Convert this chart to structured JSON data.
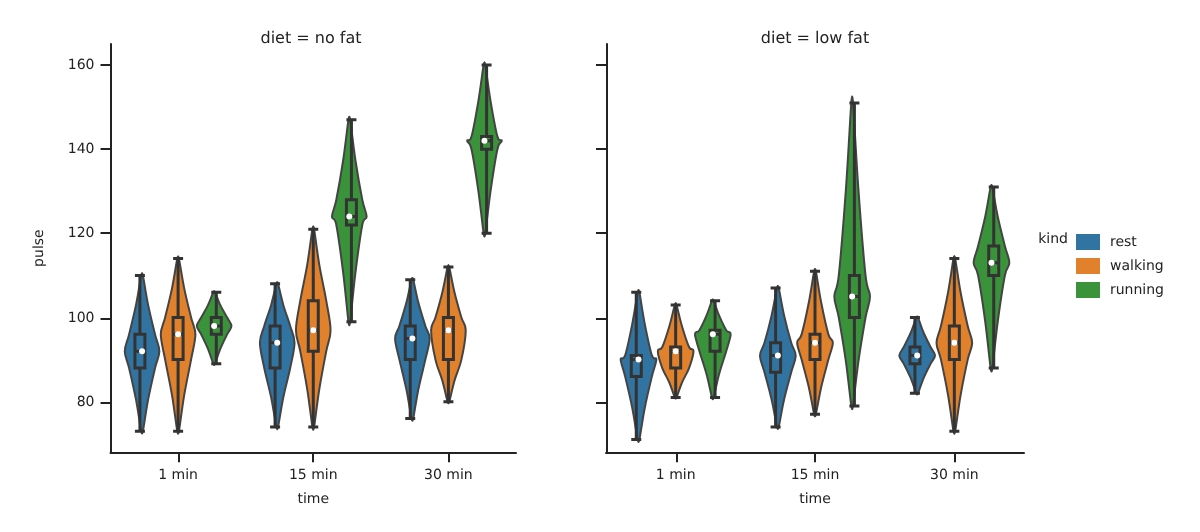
{
  "chart_data": [
    {
      "type": "box",
      "title": "diet = no fat",
      "xlabel": "time",
      "ylabel": "pulse",
      "categories": [
        "1 min",
        "15 min",
        "30 min"
      ],
      "ylim": [
        68,
        165
      ],
      "yticks": [
        80,
        100,
        120,
        140,
        160
      ],
      "legend": false,
      "grid": false,
      "series": [
        {
          "color": "#3274a1",
          "boxes": [
            {
              "low": 73,
              "q1": 88,
              "median": 92,
              "q3": 96,
              "high": 110
            },
            {
              "low": 74,
              "q1": 88,
              "median": 94,
              "q3": 98,
              "high": 108
            },
            {
              "low": 76,
              "q1": 90,
              "median": 95,
              "q3": 98,
              "high": 109
            }
          ]
        },
        {
          "color": "#e1812c",
          "boxes": [
            {
              "low": 73,
              "q1": 90,
              "median": 96,
              "q3": 100,
              "high": 114
            },
            {
              "low": 74,
              "q1": 92,
              "median": 97,
              "q3": 104,
              "high": 121
            },
            {
              "low": 80,
              "q1": 90,
              "median": 97,
              "q3": 100,
              "high": 112
            }
          ]
        },
        {
          "color": "#3a923a",
          "boxes": [
            {
              "low": 89,
              "q1": 96,
              "median": 98,
              "q3": 100,
              "high": 106
            },
            {
              "low": 99,
              "q1": 122,
              "median": 124,
              "q3": 128,
              "high": 147
            },
            {
              "low": 120,
              "q1": 140,
              "median": 142,
              "q3": 143,
              "high": 160
            }
          ]
        }
      ]
    },
    {
      "type": "box",
      "title": "diet = low fat",
      "xlabel": "time",
      "categories": [
        "1 min",
        "15 min",
        "30 min"
      ],
      "ylim": [
        68,
        165
      ],
      "yticks": [
        80,
        100,
        120,
        140,
        160
      ],
      "tick_labels": "x",
      "legend": "right",
      "legend_title": "kind",
      "grid": false,
      "series": [
        {
          "name": "rest",
          "color": "#3274a1",
          "boxes": [
            {
              "low": 71,
              "q1": 86,
              "median": 90,
              "q3": 91,
              "high": 106
            },
            {
              "low": 74,
              "q1": 87,
              "median": 91,
              "q3": 94,
              "high": 107
            },
            {
              "low": 82,
              "q1": 89,
              "median": 91,
              "q3": 93,
              "high": 100
            }
          ]
        },
        {
          "name": "walking",
          "color": "#e1812c",
          "boxes": [
            {
              "low": 81,
              "q1": 88,
              "median": 92,
              "q3": 93,
              "high": 103
            },
            {
              "low": 77,
              "q1": 90,
              "median": 94,
              "q3": 96,
              "high": 111
            },
            {
              "low": 73,
              "q1": 90,
              "median": 94,
              "q3": 98,
              "high": 114
            }
          ]
        },
        {
          "name": "running",
          "color": "#3a923a",
          "boxes": [
            {
              "low": 81,
              "q1": 92,
              "median": 96,
              "q3": 97,
              "high": 104
            },
            {
              "low": 79,
              "q1": 100,
              "median": 105,
              "q3": 110,
              "high": 151
            },
            {
              "low": 88,
              "q1": 110,
              "median": 113,
              "q3": 117,
              "high": 131
            }
          ]
        }
      ]
    }
  ]
}
